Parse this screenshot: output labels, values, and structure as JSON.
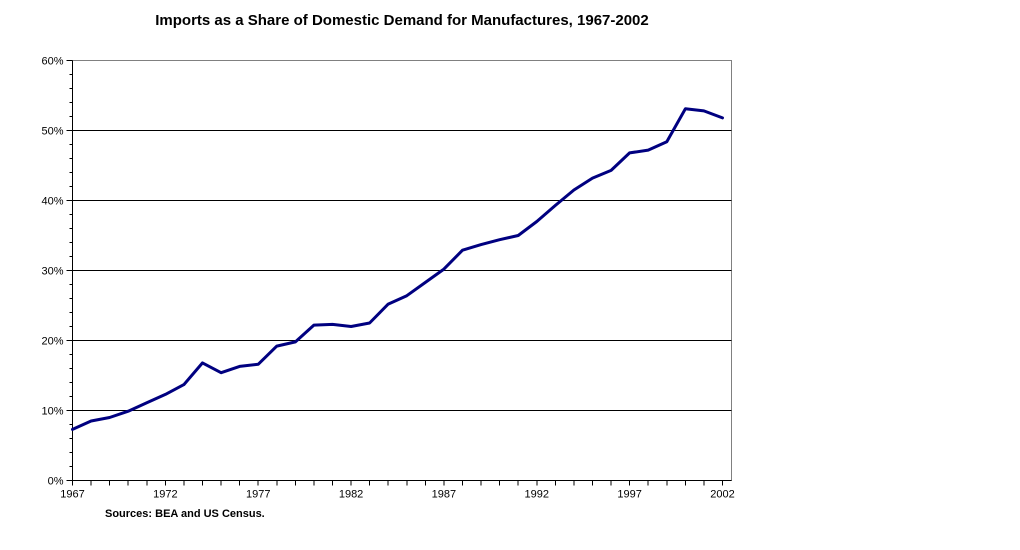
{
  "title": "Imports as a Share of Domestic Demand for Manufactures, 1967-2002",
  "source_note": "Sources: BEA and US Census.",
  "colors": {
    "line": "#000080",
    "gridline": "#000000",
    "axis": "#000000",
    "plot_border": "#808080",
    "background": "#ffffff",
    "text": "#000000"
  },
  "chart_data": {
    "type": "line",
    "title": "Imports as a Share of Domestic Demand for Manufactures, 1967-2002",
    "x": [
      1967,
      1968,
      1969,
      1970,
      1971,
      1972,
      1973,
      1974,
      1975,
      1976,
      1977,
      1978,
      1979,
      1980,
      1981,
      1982,
      1983,
      1984,
      1985,
      1986,
      1987,
      1988,
      1989,
      1990,
      1991,
      1992,
      1993,
      1994,
      1995,
      1996,
      1997,
      1998,
      1999,
      2000,
      2001,
      2002
    ],
    "values": [
      7.3,
      8.5,
      9.0,
      9.9,
      11.1,
      12.3,
      13.7,
      16.8,
      15.4,
      16.3,
      16.6,
      19.2,
      19.8,
      22.2,
      22.3,
      22.0,
      22.5,
      25.2,
      26.4,
      28.3,
      30.2,
      32.9,
      33.7,
      34.4,
      35.0,
      37.0,
      39.3,
      41.5,
      43.2,
      44.3,
      46.8,
      47.2,
      48.4,
      53.1,
      52.8,
      51.8
    ],
    "series_name": "Imports share of domestic demand for manufactures",
    "xlabel": "",
    "ylabel": "",
    "ylim": [
      0,
      60
    ],
    "y_major_step": 10,
    "y_minor_step": 2,
    "y_tick_labels": [
      "0%",
      "10%",
      "20%",
      "30%",
      "40%",
      "50%",
      "60%"
    ],
    "x_tick_labels": [
      "1967",
      "1972",
      "1977",
      "1982",
      "1987",
      "1992",
      "1997",
      "2002"
    ],
    "x_label_every": 5,
    "grid": "horizontal-major",
    "legend": "none"
  }
}
